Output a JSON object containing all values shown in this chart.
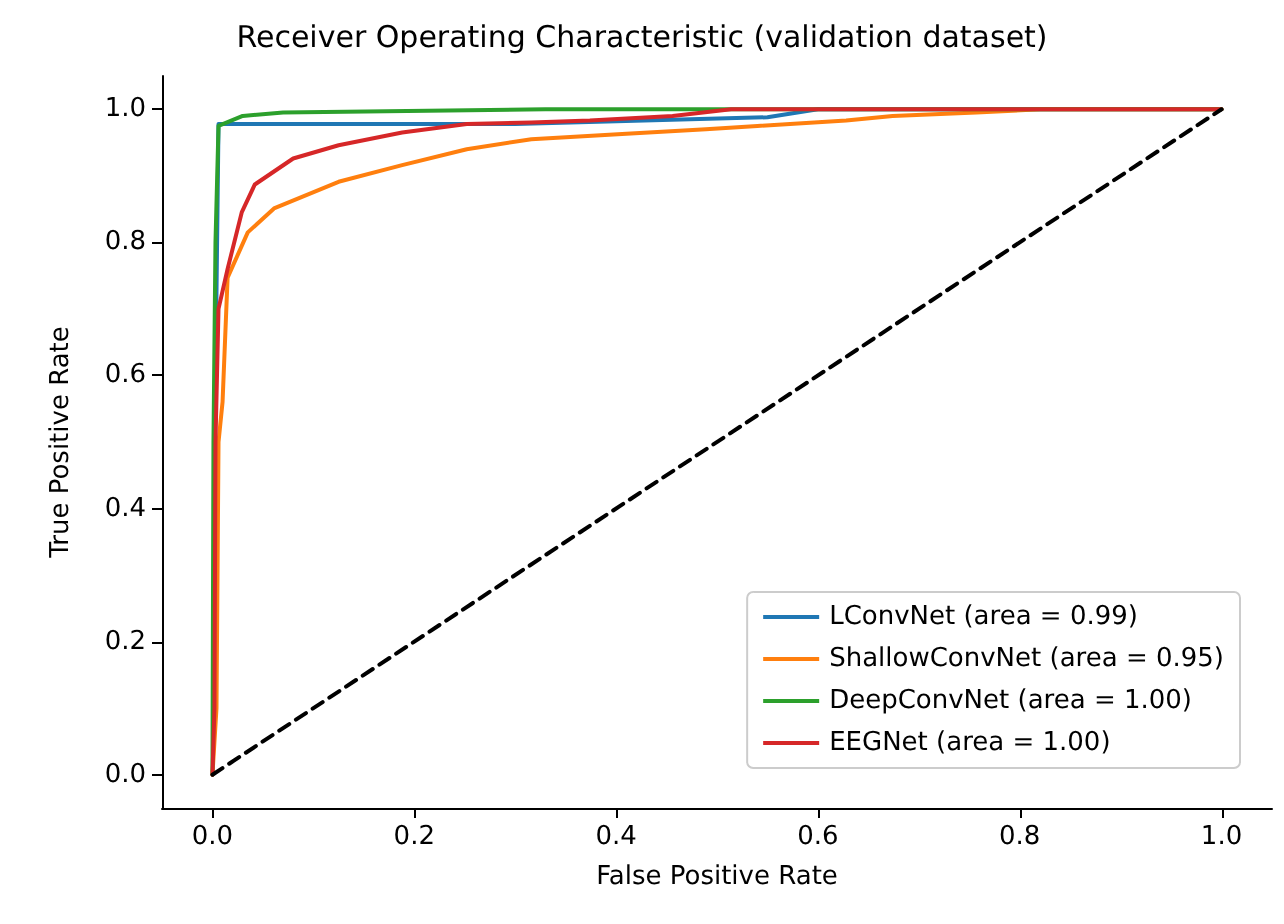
{
  "chart_data": {
    "type": "line",
    "title": "Receiver Operating Characteristic (validation dataset)",
    "xlabel": "False Positive Rate",
    "ylabel": "True Positive Rate",
    "xlim": [
      -0.05,
      1.05
    ],
    "ylim": [
      -0.05,
      1.05
    ],
    "xticks": [
      {
        "value": 0,
        "label": "0.0"
      },
      {
        "value": 0.2,
        "label": "0.2"
      },
      {
        "value": 0.4,
        "label": "0.4"
      },
      {
        "value": 0.6,
        "label": "0.6"
      },
      {
        "value": 0.8,
        "label": "0.8"
      },
      {
        "value": 1,
        "label": "1.0"
      }
    ],
    "yticks": [
      {
        "value": 0,
        "label": "0.0"
      },
      {
        "value": 0.2,
        "label": "0.2"
      },
      {
        "value": 0.4,
        "label": "0.4"
      },
      {
        "value": 0.6,
        "label": "0.6"
      },
      {
        "value": 0.8,
        "label": "0.8"
      },
      {
        "value": 1,
        "label": "1.0"
      }
    ],
    "grid": false,
    "legend": "bottom right",
    "marker": "none",
    "line_style": "solid",
    "series": [
      {
        "name": "LConvNet (area = 0.99)",
        "color": "#1f77b4",
        "x": [
          0.003,
          0.006,
          0.3,
          0.55,
          0.6,
          1
        ],
        "values": [
          0.6,
          0.978,
          0.978,
          0.988,
          1,
          1
        ]
      },
      {
        "name": "ShallowConvNet (area = 0.95)",
        "color": "#ff7f0e",
        "x": [
          0,
          0.004,
          0.006,
          0.01,
          0.015,
          0.035,
          0.061,
          0.125,
          0.188,
          0.252,
          0.316,
          0.406,
          0.489,
          0.54,
          0.628,
          0.674,
          0.757,
          0.82,
          1
        ],
        "values": [
          0,
          0.1,
          0.5,
          0.56,
          0.747,
          0.815,
          0.851,
          0.891,
          0.916,
          0.94,
          0.955,
          0.963,
          0.97,
          0.975,
          0.983,
          0.99,
          0.995,
          1,
          1
        ]
      },
      {
        "name": "DeepConvNet (area = 1.00)",
        "color": "#2ca02c",
        "x": [
          0,
          0.001,
          0.003,
          0.006,
          0.03,
          0.07,
          0.33,
          1
        ],
        "values": [
          0,
          0.5,
          0.8,
          0.975,
          0.99,
          0.995,
          1,
          1
        ]
      },
      {
        "name": "EEGNet (area = 1.00)",
        "color": "#d62728",
        "x": [
          0,
          0.002,
          0.003,
          0.006,
          0.015,
          0.029,
          0.042,
          0.08,
          0.125,
          0.188,
          0.252,
          0.316,
          0.374,
          0.456,
          0.514,
          1
        ],
        "values": [
          0,
          0.1,
          0.5,
          0.7,
          0.76,
          0.845,
          0.887,
          0.926,
          0.946,
          0.965,
          0.978,
          0.98,
          0.983,
          0.99,
          1,
          1
        ]
      },
      {
        "color": "#000000",
        "line_style": "dashed",
        "x": [
          0,
          1
        ],
        "values": [
          0,
          1
        ]
      }
    ]
  }
}
